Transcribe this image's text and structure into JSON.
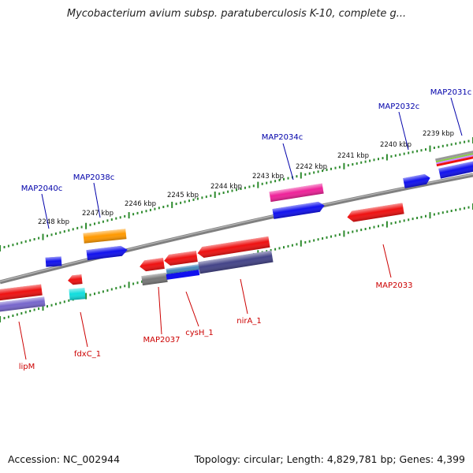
{
  "title": "Mycobacterium avium subsp. paratuberculosis K-10, complete g...",
  "footer": {
    "accession": "Accession: NC_002944",
    "topology": "Topology: circular; Length: 4,829,781 bp; Genes: 4,399"
  },
  "colors": {
    "backbone": "#7f7f7f",
    "tick": "#2e8b2e",
    "label_forward": "#0000aa",
    "label_reverse": "#cc0000",
    "red": "#ee1111",
    "blue": "#1111ee",
    "orange": "#ff9900",
    "magenta": "#ee2299",
    "navy": "#444488",
    "cyan": "#11dddd",
    "gray": "#777777",
    "steel": "#4488bb",
    "lavender": "#7766cc"
  },
  "kbp_ticks": [
    {
      "text": "2248 kbp"
    },
    {
      "text": "2247 kbp"
    },
    {
      "text": "2246 kbp"
    },
    {
      "text": "2245 kbp"
    },
    {
      "text": "2244 kbp"
    },
    {
      "text": "2243 kbp"
    },
    {
      "text": "2242 kbp"
    },
    {
      "text": "2241 kbp"
    },
    {
      "text": "2240 kbp"
    },
    {
      "text": "2239 kbp"
    }
  ],
  "gene_labels": {
    "forward": [
      "MAP2040c",
      "MAP2038c",
      "MAP2034c",
      "MAP2032c",
      "MAP2031c"
    ],
    "reverse": [
      "lipM",
      "fdxC_1",
      "MAP2037",
      "cysH_1",
      "nirA_1",
      "MAP2033"
    ]
  }
}
